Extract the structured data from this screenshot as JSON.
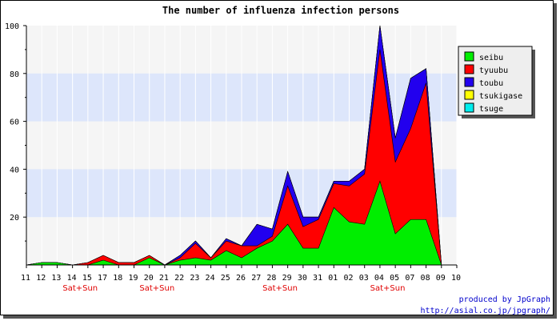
{
  "chart_data": {
    "type": "area",
    "stacked": true,
    "title": "The number of influenza infection persons",
    "xlabel": "",
    "ylabel": "",
    "ylim": [
      0,
      100
    ],
    "yticks": [
      20,
      40,
      60,
      80,
      100
    ],
    "categories": [
      "11",
      "12",
      "13",
      "14",
      "15",
      "17",
      "18",
      "19",
      "20",
      "21",
      "22",
      "23",
      "24",
      "25",
      "26",
      "27",
      "28",
      "29",
      "30",
      "31",
      "01",
      "02",
      "03",
      "04",
      "05",
      "07",
      "08",
      "09",
      "10"
    ],
    "weekend_labels": [
      {
        "after": "14",
        "text": "Sat+Sun"
      },
      {
        "after": "20",
        "text": "Sat+Sun"
      },
      {
        "after": "28",
        "text": "Sat+Sun"
      },
      {
        "after": "04",
        "text": "Sat+Sun"
      }
    ],
    "series": [
      {
        "name": "seibu",
        "color": "#00ee00",
        "values": [
          0,
          1,
          1,
          0,
          0,
          2,
          0,
          0,
          3,
          0,
          2,
          3,
          2,
          6,
          3,
          7,
          10,
          17,
          7,
          7,
          24,
          18,
          17,
          35,
          13,
          19,
          19,
          0,
          0
        ]
      },
      {
        "name": "tyuubu",
        "color": "#ff0000",
        "values": [
          0,
          0,
          0,
          0,
          1,
          2,
          1,
          1,
          1,
          0,
          1,
          6,
          1,
          4,
          5,
          1,
          2,
          16,
          9,
          12,
          10,
          15,
          21,
          55,
          30,
          38,
          57,
          0,
          0
        ]
      },
      {
        "name": "toubu",
        "color": "#2200ee",
        "values": [
          0,
          0,
          0,
          0,
          0,
          0,
          0,
          0,
          0,
          0,
          1,
          1,
          0,
          1,
          0,
          9,
          3,
          6,
          4,
          1,
          1,
          2,
          2,
          10,
          10,
          21,
          6,
          0,
          0
        ]
      },
      {
        "name": "tsukigase",
        "color": "#ffff00",
        "values": [
          0,
          0,
          0,
          0,
          0,
          0,
          0,
          0,
          0,
          0,
          0,
          0,
          0,
          0,
          0,
          0,
          0,
          0,
          0,
          0,
          0,
          0,
          0,
          0,
          0,
          0,
          0,
          0,
          0
        ]
      },
      {
        "name": "tsuge",
        "color": "#00eeee",
        "values": [
          0,
          0,
          0,
          0,
          0,
          0,
          0,
          0,
          0,
          0,
          0,
          0,
          0,
          0,
          0,
          0,
          0,
          0,
          0,
          0,
          0,
          0,
          0,
          0,
          0,
          0,
          0,
          0,
          0
        ]
      }
    ],
    "bands": [
      [
        20,
        40
      ],
      [
        60,
        80
      ]
    ],
    "grid": true,
    "legend_position": "top-right"
  },
  "footer": {
    "line1": "produced by JpGraph",
    "line2": "http://asial.co.jp/jpgraph/"
  }
}
